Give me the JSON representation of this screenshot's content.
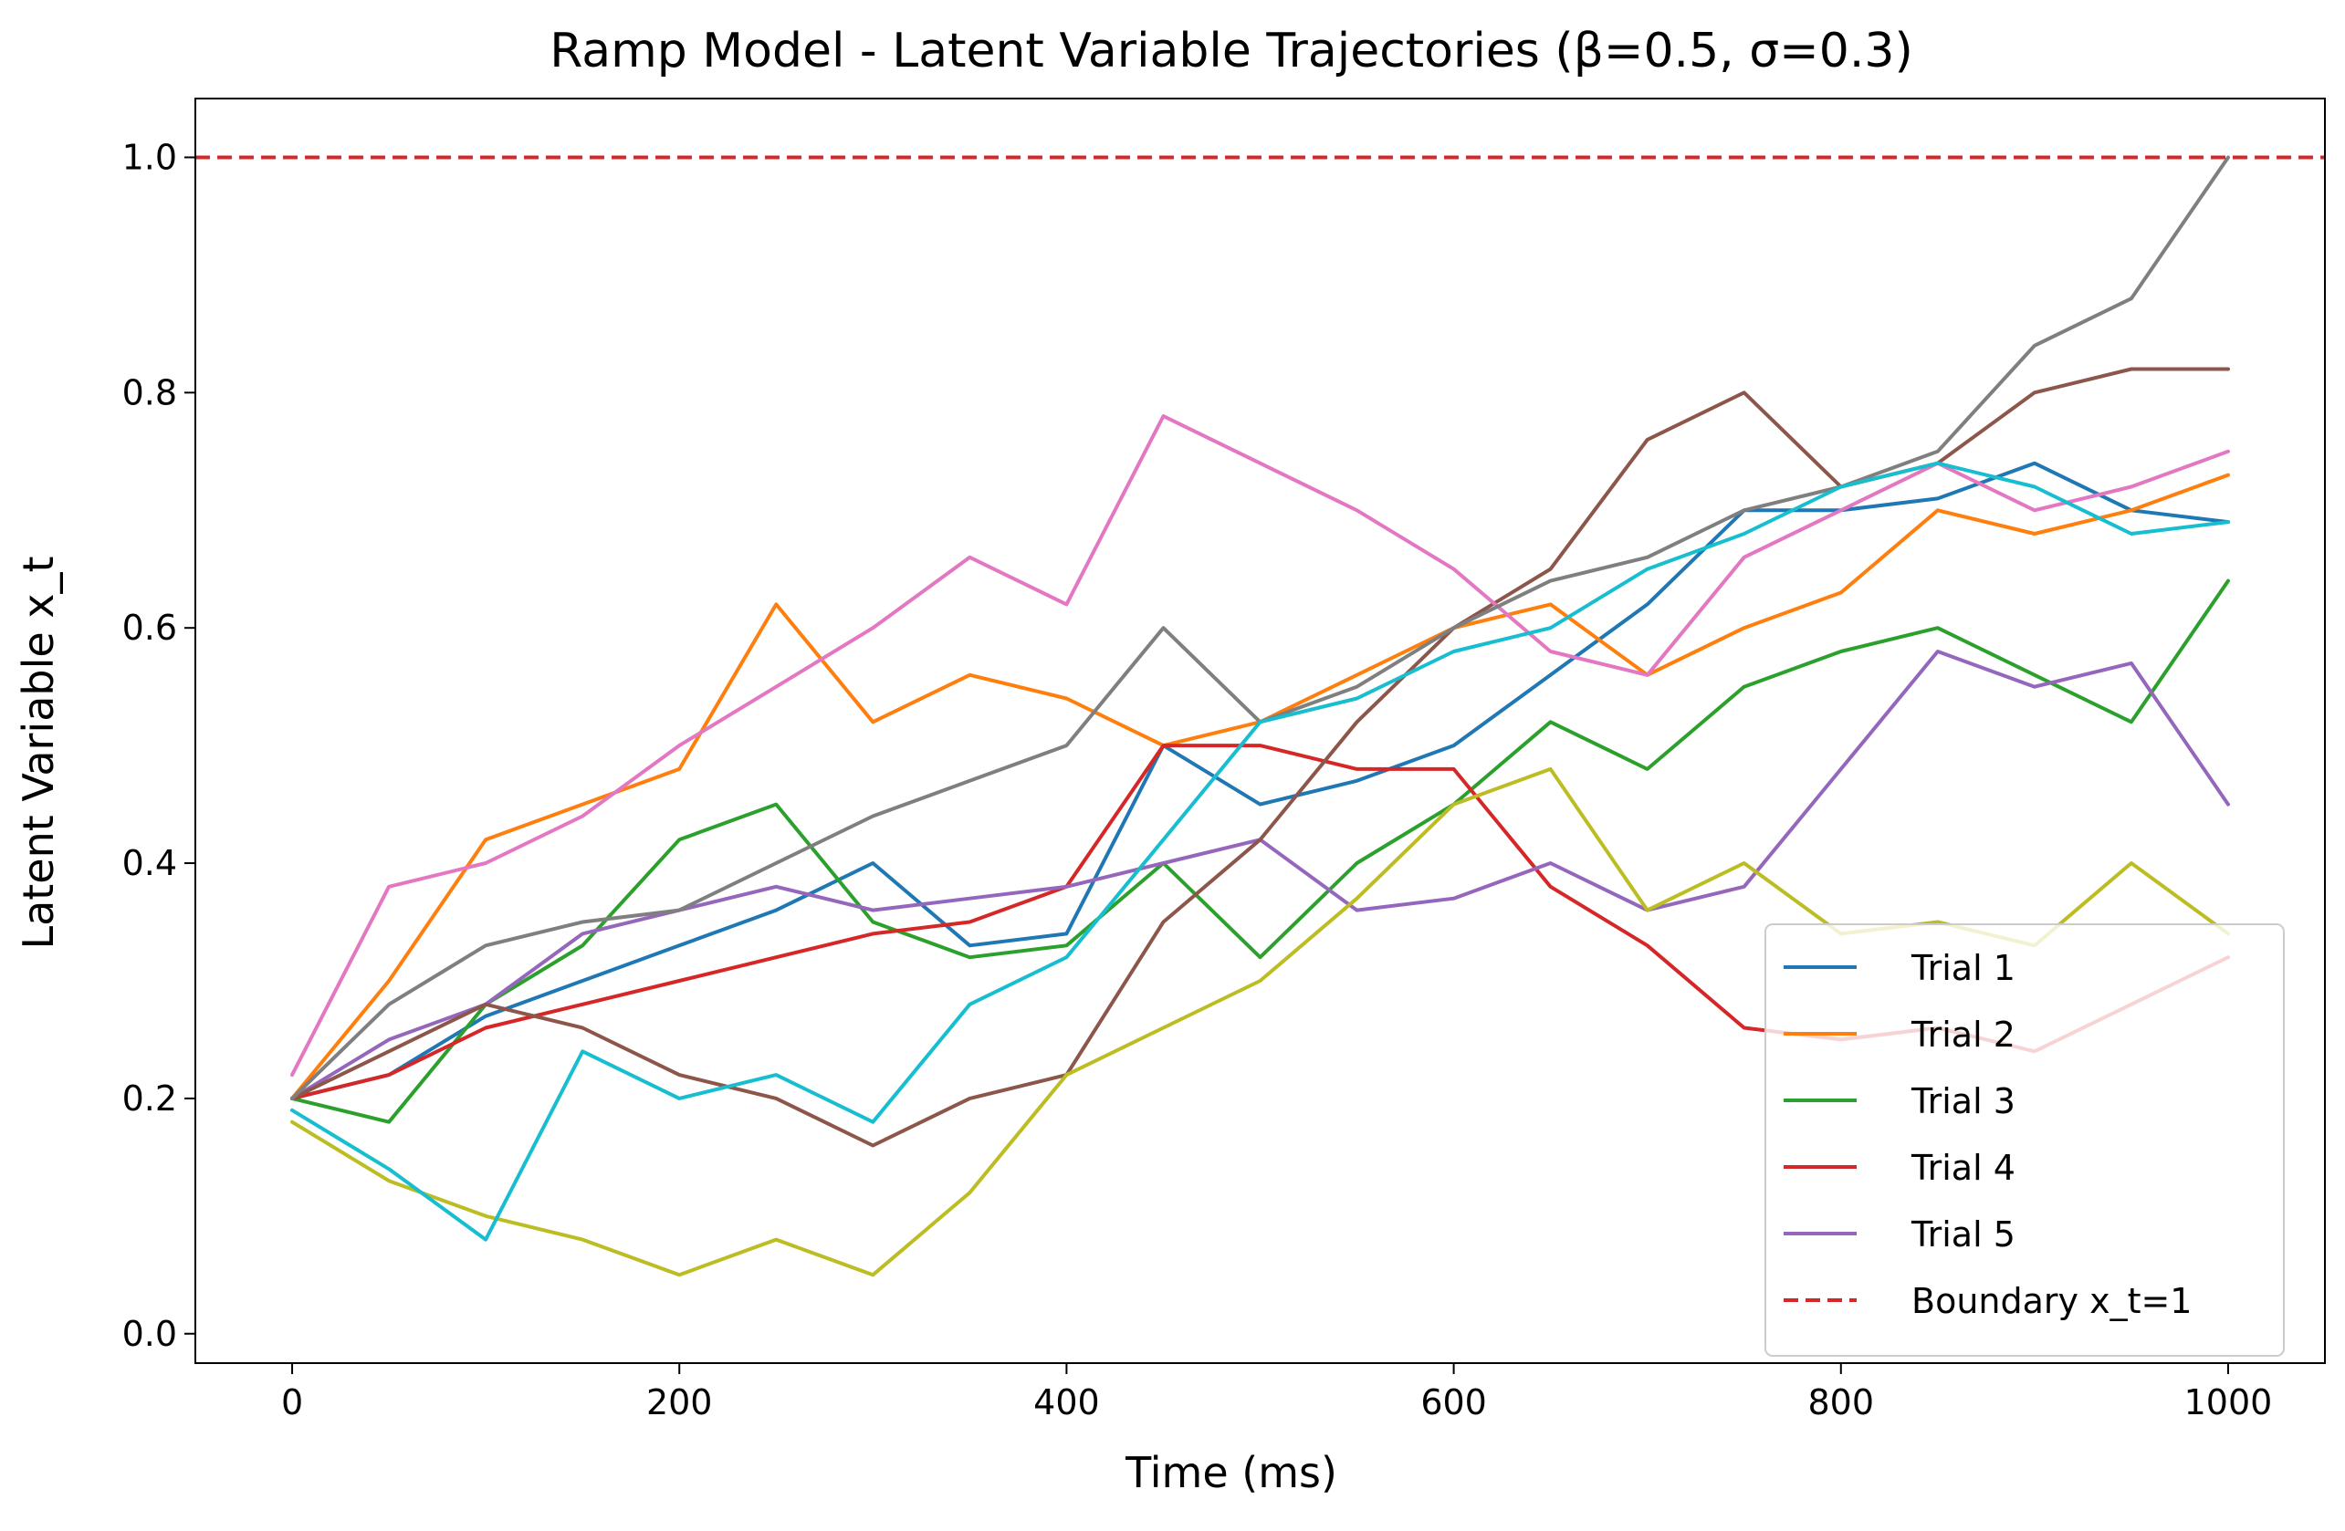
{
  "chart_data": {
    "type": "line",
    "title": "Ramp Model - Latent Variable Trajectories (β=0.5, σ=0.3)",
    "xlabel": "Time (ms)",
    "ylabel": "Latent Variable x_t",
    "xlim": [
      -50,
      1050
    ],
    "ylim": [
      -0.025,
      1.05
    ],
    "xticks": [
      0,
      200,
      400,
      600,
      800,
      1000
    ],
    "yticks": [
      0.0,
      0.2,
      0.4,
      0.6,
      0.8,
      1.0
    ],
    "xtick_labels": [
      "0",
      "200",
      "400",
      "600",
      "800",
      "1000"
    ],
    "ytick_labels": [
      "0.0",
      "0.2",
      "0.4",
      "0.6",
      "0.8",
      "1.0"
    ],
    "grid": false,
    "legend_position": "bottom-right",
    "boundary": {
      "name": "Boundary x_t=1",
      "y": 1.0,
      "color": "#d62728",
      "style": "dashed"
    },
    "series": [
      {
        "name": "Trial 1",
        "color": "#1f77b4",
        "x": [
          0,
          50,
          100,
          150,
          200,
          250,
          300,
          350,
          400,
          450,
          500,
          550,
          600,
          650,
          700,
          750,
          800,
          850,
          900,
          950,
          1000
        ],
        "values": [
          0.2,
          0.22,
          0.27,
          0.3,
          0.33,
          0.36,
          0.4,
          0.33,
          0.34,
          0.5,
          0.45,
          0.47,
          0.5,
          0.56,
          0.62,
          0.7,
          0.7,
          0.71,
          0.74,
          0.7,
          0.69
        ]
      },
      {
        "name": "Trial 2",
        "color": "#ff7f0e",
        "x": [
          0,
          50,
          100,
          150,
          200,
          250,
          300,
          350,
          400,
          450,
          500,
          550,
          600,
          650,
          700,
          750,
          800,
          850,
          900,
          950,
          1000
        ],
        "values": [
          0.2,
          0.3,
          0.42,
          0.45,
          0.48,
          0.62,
          0.52,
          0.56,
          0.54,
          0.5,
          0.52,
          0.56,
          0.6,
          0.62,
          0.56,
          0.6,
          0.63,
          0.7,
          0.68,
          0.7,
          0.73
        ]
      },
      {
        "name": "Trial 3",
        "color": "#2ca02c",
        "x": [
          0,
          50,
          100,
          150,
          200,
          250,
          300,
          350,
          400,
          450,
          500,
          550,
          600,
          650,
          700,
          750,
          800,
          850,
          900,
          950,
          1000
        ],
        "values": [
          0.2,
          0.18,
          0.28,
          0.33,
          0.42,
          0.45,
          0.35,
          0.32,
          0.33,
          0.4,
          0.32,
          0.4,
          0.45,
          0.52,
          0.48,
          0.55,
          0.58,
          0.6,
          0.56,
          0.52,
          0.64
        ]
      },
      {
        "name": "Trial 4",
        "color": "#d62728",
        "x": [
          0,
          50,
          100,
          150,
          200,
          250,
          300,
          350,
          400,
          450,
          500,
          550,
          600,
          650,
          700,
          750,
          800,
          850,
          900,
          950,
          1000
        ],
        "values": [
          0.2,
          0.22,
          0.26,
          0.28,
          0.3,
          0.32,
          0.34,
          0.35,
          0.38,
          0.5,
          0.5,
          0.48,
          0.48,
          0.38,
          0.33,
          0.26,
          0.25,
          0.26,
          0.24,
          0.28,
          0.32
        ]
      },
      {
        "name": "Trial 5",
        "color": "#9467bd",
        "x": [
          0,
          50,
          100,
          150,
          200,
          250,
          300,
          350,
          400,
          450,
          500,
          550,
          600,
          650,
          700,
          750,
          800,
          850,
          900,
          950,
          1000
        ],
        "values": [
          0.2,
          0.25,
          0.28,
          0.34,
          0.36,
          0.38,
          0.36,
          0.37,
          0.38,
          0.4,
          0.42,
          0.36,
          0.37,
          0.4,
          0.36,
          0.38,
          0.48,
          0.58,
          0.55,
          0.57,
          0.45
        ]
      },
      {
        "color": "#8c564b",
        "x": [
          0,
          50,
          100,
          150,
          200,
          250,
          300,
          350,
          400,
          450,
          500,
          550,
          600,
          650,
          700,
          750,
          800,
          850,
          900,
          950,
          1000
        ],
        "values": [
          0.2,
          0.24,
          0.28,
          0.26,
          0.22,
          0.2,
          0.16,
          0.2,
          0.22,
          0.35,
          0.42,
          0.52,
          0.6,
          0.65,
          0.76,
          0.8,
          0.72,
          0.74,
          0.8,
          0.82,
          0.82
        ]
      },
      {
        "color": "#e377c2",
        "x": [
          0,
          50,
          100,
          150,
          200,
          250,
          300,
          350,
          400,
          450,
          500,
          550,
          600,
          650,
          700,
          750,
          800,
          850,
          900,
          950,
          1000
        ],
        "values": [
          0.22,
          0.38,
          0.4,
          0.44,
          0.5,
          0.55,
          0.6,
          0.66,
          0.62,
          0.78,
          0.74,
          0.7,
          0.65,
          0.58,
          0.56,
          0.66,
          0.7,
          0.74,
          0.7,
          0.72,
          0.75
        ]
      },
      {
        "color": "#7f7f7f",
        "x": [
          0,
          50,
          100,
          150,
          200,
          250,
          300,
          350,
          400,
          450,
          500,
          550,
          600,
          650,
          700,
          750,
          800,
          850,
          900,
          950,
          1000
        ],
        "values": [
          0.2,
          0.28,
          0.33,
          0.35,
          0.36,
          0.4,
          0.44,
          0.47,
          0.5,
          0.6,
          0.52,
          0.55,
          0.6,
          0.64,
          0.66,
          0.7,
          0.72,
          0.75,
          0.84,
          0.88,
          1.0
        ]
      },
      {
        "color": "#bcbd22",
        "x": [
          0,
          50,
          100,
          150,
          200,
          250,
          300,
          350,
          400,
          450,
          500,
          550,
          600,
          650,
          700,
          750,
          800,
          850,
          900,
          950,
          1000
        ],
        "values": [
          0.18,
          0.13,
          0.1,
          0.08,
          0.05,
          0.08,
          0.05,
          0.12,
          0.22,
          0.26,
          0.3,
          0.37,
          0.45,
          0.48,
          0.36,
          0.4,
          0.34,
          0.35,
          0.33,
          0.4,
          0.34
        ]
      },
      {
        "color": "#17becf",
        "x": [
          0,
          50,
          100,
          150,
          200,
          250,
          300,
          350,
          400,
          450,
          500,
          550,
          600,
          650,
          700,
          750,
          800,
          850,
          900,
          950,
          1000
        ],
        "values": [
          0.19,
          0.14,
          0.08,
          0.24,
          0.2,
          0.22,
          0.18,
          0.28,
          0.32,
          0.42,
          0.52,
          0.54,
          0.58,
          0.6,
          0.65,
          0.68,
          0.72,
          0.74,
          0.72,
          0.68,
          0.69
        ]
      }
    ]
  }
}
